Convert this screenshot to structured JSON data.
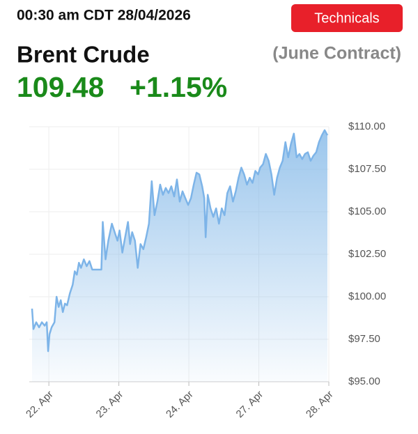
{
  "header": {
    "timestamp": "00:30 am CDT 28/04/2026",
    "button": "Technicals",
    "name": "Brent Crude",
    "contract": "(June Contract)",
    "price": "109.48",
    "change": "+1.15%"
  },
  "chart_data": {
    "type": "area",
    "color": "#7db4e8",
    "grid": true,
    "x": [
      -0.24,
      -0.22,
      -0.18,
      -0.14,
      -0.1,
      -0.06,
      -0.03,
      -0.01,
      0.01,
      0.04,
      0.08,
      0.11,
      0.14,
      0.17,
      0.2,
      0.23,
      0.26,
      0.3,
      0.34,
      0.37,
      0.4,
      0.43,
      0.46,
      0.5,
      0.54,
      0.58,
      0.62,
      0.68,
      0.75,
      0.77,
      0.81,
      0.85,
      0.9,
      0.94,
      0.98,
      1.01,
      1.05,
      1.09,
      1.13,
      1.16,
      1.19,
      1.23,
      1.27,
      1.31,
      1.35,
      1.39,
      1.43,
      1.47,
      1.51,
      1.55,
      1.59,
      1.63,
      1.67,
      1.71,
      1.75,
      1.79,
      1.83,
      1.87,
      1.91,
      1.95,
      1.99,
      2.03,
      2.07,
      2.11,
      2.15,
      2.19,
      2.22,
      2.24,
      2.27,
      2.31,
      2.35,
      2.39,
      2.43,
      2.47,
      2.51,
      2.55,
      2.59,
      2.63,
      2.67,
      2.71,
      2.75,
      2.79,
      2.83,
      2.87,
      2.91,
      2.95,
      2.99,
      3.02,
      3.06,
      3.1,
      3.14,
      3.18,
      3.22,
      3.26,
      3.3,
      3.34,
      3.38,
      3.42,
      3.46,
      3.5,
      3.54,
      3.58,
      3.62,
      3.66,
      3.7,
      3.74,
      3.78,
      3.82,
      3.86,
      3.9,
      3.94,
      3.98
    ],
    "values": [
      99.3,
      98.1,
      98.5,
      98.2,
      98.5,
      98.3,
      98.5,
      96.8,
      97.8,
      98.2,
      98.5,
      100.0,
      99.4,
      99.8,
      99.1,
      99.6,
      99.5,
      100.2,
      100.7,
      101.5,
      101.3,
      102.0,
      101.7,
      102.2,
      101.8,
      102.1,
      101.6,
      101.6,
      101.6,
      104.4,
      102.2,
      103.3,
      104.3,
      103.8,
      103.3,
      103.9,
      102.6,
      103.5,
      104.4,
      103.1,
      103.8,
      103.3,
      101.7,
      103.1,
      102.8,
      103.5,
      104.3,
      106.8,
      104.8,
      105.6,
      106.6,
      106.0,
      106.4,
      106.1,
      106.5,
      105.9,
      106.9,
      105.6,
      106.2,
      105.8,
      105.4,
      105.8,
      106.6,
      107.3,
      107.2,
      106.5,
      105.8,
      103.5,
      106.0,
      105.2,
      104.7,
      105.2,
      104.3,
      105.2,
      104.8,
      106.1,
      106.5,
      105.6,
      106.2,
      107.0,
      107.6,
      107.2,
      106.6,
      107.0,
      106.7,
      107.4,
      107.2,
      107.6,
      107.8,
      108.4,
      108.0,
      107.2,
      106.0,
      107.0,
      107.6,
      108.0,
      109.1,
      108.2,
      109.0,
      109.6,
      108.2,
      108.4,
      108.1,
      108.4,
      108.5,
      108.0,
      108.3,
      108.5,
      109.1,
      109.5,
      109.8,
      109.5
    ],
    "xlim": [
      -0.28,
      4.0
    ],
    "xticks": [
      {
        "value": 0,
        "label": "22. Apr"
      },
      {
        "value": 1,
        "label": "23. Apr"
      },
      {
        "value": 2,
        "label": "24. Apr"
      },
      {
        "value": 3,
        "label": "27. Apr"
      },
      {
        "value": 4,
        "label": "28. Apr"
      }
    ],
    "ylim": [
      95,
      110
    ],
    "yticks": [
      {
        "value": 95,
        "label": "$95.00"
      },
      {
        "value": 97.5,
        "label": "$97.50"
      },
      {
        "value": 100,
        "label": "$100.00"
      },
      {
        "value": 102.5,
        "label": "$102.50"
      },
      {
        "value": 105,
        "label": "$105.00"
      },
      {
        "value": 107.5,
        "label": "$107.50"
      },
      {
        "value": 110,
        "label": "$110.00"
      }
    ]
  }
}
